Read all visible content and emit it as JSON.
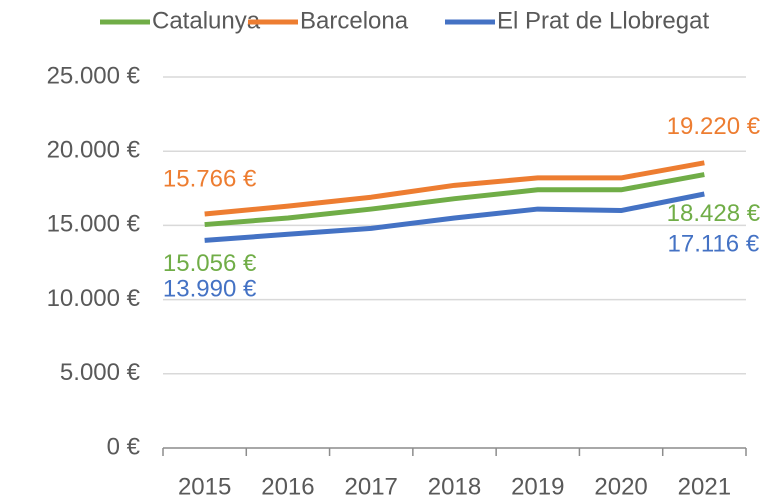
{
  "chart_data": {
    "type": "line",
    "categories": [
      "2015",
      "2016",
      "2017",
      "2018",
      "2019",
      "2020",
      "2021"
    ],
    "series": [
      {
        "name": "Catalunya",
        "color": "#70ad47",
        "values": [
          15056,
          15500,
          16100,
          16800,
          17400,
          17400,
          18428
        ],
        "value_labels": [
          "15.056 €",
          null,
          null,
          null,
          null,
          null,
          "18.428 €"
        ]
      },
      {
        "name": "Barcelona",
        "color": "#ed7d31",
        "values": [
          15766,
          16300,
          16900,
          17700,
          18200,
          18200,
          19220
        ],
        "value_labels": [
          "15.766 €",
          null,
          null,
          null,
          null,
          null,
          "19.220 €"
        ]
      },
      {
        "name": "El Prat de Llobregat",
        "color": "#4472c4",
        "values": [
          13990,
          14400,
          14800,
          15500,
          16100,
          16000,
          17116
        ],
        "value_labels": [
          "13.990 €",
          null,
          null,
          null,
          null,
          null,
          "17.116 €"
        ]
      }
    ],
    "ylim": [
      0,
      25000
    ],
    "yticks": [
      {
        "value": 0,
        "label": "0 €"
      },
      {
        "value": 5000,
        "label": "5.000 €"
      },
      {
        "value": 10000,
        "label": "10.000 €"
      },
      {
        "value": 15000,
        "label": "15.000 €"
      },
      {
        "value": 20000,
        "label": "20.000 €"
      },
      {
        "value": 25000,
        "label": "25.000 €"
      }
    ],
    "grid": true,
    "legend": "top"
  }
}
